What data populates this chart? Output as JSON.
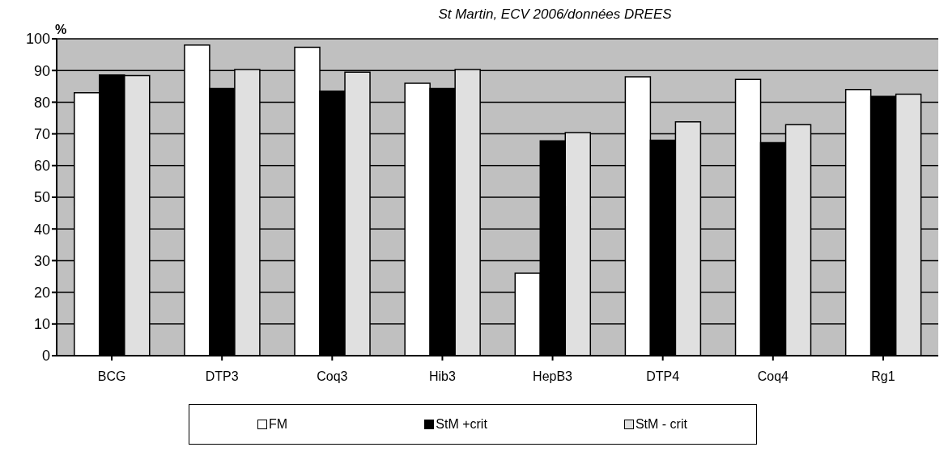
{
  "chart_data": {
    "type": "bar",
    "title": "St Martin, ECV 2006/données DREES",
    "ylabel": "%",
    "categories": [
      "BCG",
      "DTP3",
      "Coq3",
      "Hib3",
      "HepB3",
      "DTP4",
      "Coq4",
      "Rg1"
    ],
    "series": [
      {
        "name": "FM",
        "color": "#ffffff",
        "values": [
          83,
          98,
          97.3,
          86,
          26,
          88,
          87.2,
          84
        ]
      },
      {
        "name": "StM +crit",
        "color": "#000000",
        "values": [
          88.6,
          84.3,
          83.5,
          84.3,
          67.8,
          68,
          67.2,
          81.8
        ]
      },
      {
        "name": "StM - crit",
        "color": "#e0e0e0",
        "values": [
          88.4,
          90.3,
          89.5,
          90.3,
          70.4,
          73.8,
          72.9,
          82.5
        ]
      }
    ],
    "ylim": [
      0,
      100
    ],
    "yticks": [
      0,
      10,
      20,
      30,
      40,
      50,
      60,
      70,
      80,
      90,
      100
    ],
    "grid": "y",
    "legend": "bottom"
  }
}
